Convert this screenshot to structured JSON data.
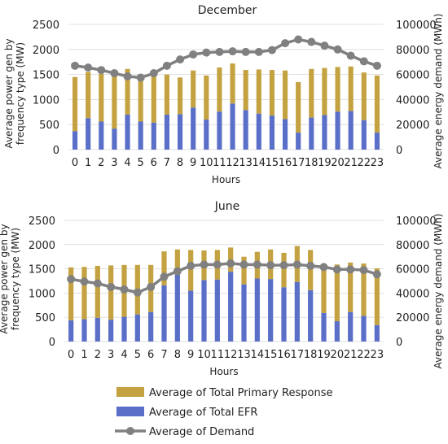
{
  "chart_data": [
    {
      "type": "bar",
      "title": "December",
      "xlabel": "Hours",
      "ylabel": "Average power gen by frequency type (MW)",
      "y2label": "Average energy demand (MWh)",
      "ylim": [
        0,
        2500
      ],
      "y2lim": [
        0,
        100000
      ],
      "yticks": [
        "0",
        "500",
        "1000",
        "1500",
        "2000",
        "2500"
      ],
      "y2ticks": [
        "0",
        "20000",
        "40000",
        "60000",
        "80000",
        "100000"
      ],
      "categories": [
        "0",
        "1",
        "2",
        "3",
        "4",
        "5",
        "6",
        "7",
        "8",
        "9",
        "10",
        "11",
        "12",
        "13",
        "14",
        "15",
        "16",
        "17",
        "18",
        "19",
        "20",
        "21",
        "22",
        "23"
      ],
      "series": [
        {
          "name": "Average of Total EFR",
          "type": "stacked-bar",
          "color": "#5a6fc7",
          "values": [
            370,
            630,
            560,
            420,
            700,
            560,
            540,
            700,
            710,
            840,
            600,
            760,
            920,
            790,
            720,
            680,
            610,
            340,
            640,
            690,
            760,
            770,
            590,
            340
          ]
        },
        {
          "name": "Average of Total Primary Response",
          "type": "stacked-bar",
          "color": "#c4a241",
          "values": [
            1080,
            920,
            950,
            1120,
            910,
            930,
            1010,
            800,
            730,
            740,
            880,
            880,
            800,
            800,
            880,
            910,
            970,
            1010,
            970,
            940,
            890,
            890,
            950,
            1140
          ]
        },
        {
          "name": "Average of Demand",
          "type": "line",
          "axis": "right",
          "color": "#808080",
          "values": [
            67000,
            65500,
            63500,
            61000,
            58500,
            57500,
            61000,
            67000,
            72000,
            76000,
            77500,
            78000,
            78500,
            78000,
            78000,
            79500,
            85000,
            88000,
            86000,
            83000,
            80000,
            75000,
            70500,
            67000
          ]
        }
      ]
    },
    {
      "type": "bar",
      "title": "June",
      "xlabel": "Hours",
      "ylabel": "Average power gen by frequency type (MW)",
      "y2label": "Average energy demand (MWh)",
      "ylim": [
        0,
        2500
      ],
      "y2lim": [
        0,
        100000
      ],
      "yticks": [
        "0",
        "500",
        "1000",
        "1500",
        "2000",
        "2500"
      ],
      "y2ticks": [
        "0",
        "20000",
        "40000",
        "60000",
        "80000",
        "100000"
      ],
      "categories": [
        "0",
        "1",
        "2",
        "3",
        "4",
        "5",
        "6",
        "7",
        "8",
        "9",
        "10",
        "11",
        "12",
        "13",
        "14",
        "15",
        "16",
        "17",
        "18",
        "19",
        "20",
        "21",
        "22",
        "23"
      ],
      "series": [
        {
          "name": "Average of Total EFR",
          "type": "stacked-bar",
          "color": "#5a6fc7",
          "values": [
            440,
            460,
            490,
            450,
            510,
            560,
            610,
            1160,
            1380,
            1050,
            1270,
            1280,
            1440,
            1180,
            1300,
            1290,
            1120,
            1230,
            1060,
            590,
            420,
            610,
            530,
            340
          ]
        },
        {
          "name": "Average of Total Primary Response",
          "type": "stacked-bar",
          "color": "#c4a241",
          "values": [
            1090,
            1080,
            1070,
            1120,
            1070,
            1020,
            970,
            700,
            520,
            840,
            610,
            610,
            500,
            570,
            550,
            610,
            710,
            740,
            830,
            1000,
            1170,
            1020,
            1080,
            1170
          ]
        },
        {
          "name": "Average of Demand",
          "type": "line",
          "axis": "right",
          "color": "#808080",
          "values": [
            51500,
            49500,
            48000,
            45000,
            43000,
            40500,
            45000,
            53500,
            58000,
            62500,
            63500,
            63500,
            64500,
            63500,
            63500,
            63000,
            63000,
            63500,
            62500,
            61500,
            59500,
            59500,
            59000,
            55500
          ]
        }
      ]
    }
  ],
  "legend": [
    {
      "label": "Average of Total Primary Response",
      "kind": "bar",
      "color": "#c4a241"
    },
    {
      "label": "Average of Total EFR",
      "kind": "bar",
      "color": "#5a6fc7"
    },
    {
      "label": "Average of Demand",
      "kind": "line",
      "color": "#808080"
    }
  ],
  "colors": {
    "efr": "#5a6fc7",
    "primary": "#c4a241",
    "demand": "#808080",
    "background": "#ffffff"
  }
}
